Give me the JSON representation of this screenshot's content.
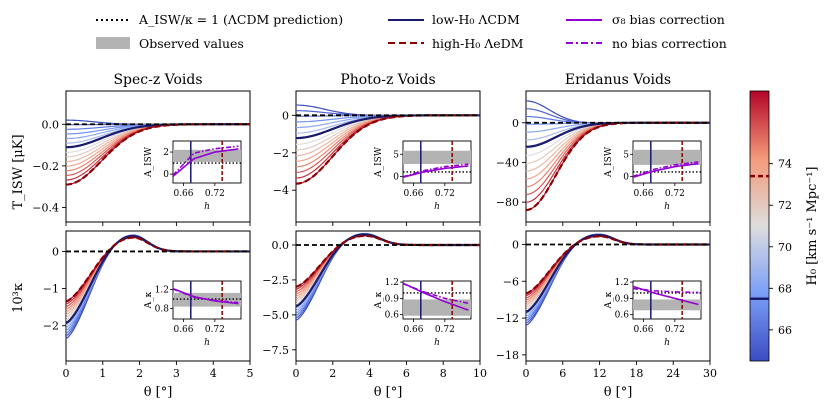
{
  "chart_data": {
    "type": "line",
    "legend": {
      "placement": "top",
      "entries": [
        {
          "key": "lcdm_pred",
          "label": "A_ISW/κ = 1 (ΛCDM prediction)",
          "style": "dotted",
          "color": "#000000"
        },
        {
          "key": "observed",
          "label": "Observed values",
          "style": "band",
          "color": "#b3b3b3"
        },
        {
          "key": "lowH0",
          "label": "low-H₀ ΛCDM",
          "style": "solid",
          "color": "#1a1a6e"
        },
        {
          "key": "highH0",
          "label": "high-H₀ ΛeDM",
          "style": "dashed",
          "color": "#8b0000"
        },
        {
          "key": "s8",
          "label": "σ₈ bias correction",
          "style": "solid",
          "color": "#9400d3"
        },
        {
          "key": "nobias",
          "label": "no bias correction",
          "style": "dashdot",
          "color": "#9400d3"
        }
      ]
    },
    "colorbar": {
      "label": "H₀ [km s⁻¹ Mpc⁻¹]",
      "ticks": [
        66,
        68,
        70,
        72,
        74
      ],
      "range": [
        64.5,
        77.5
      ],
      "marks": [
        67.5,
        73.4
      ],
      "colormap": "coolwarm"
    },
    "row_ylabels": [
      "T_ISW [μK]",
      "10³κ"
    ],
    "xlabel": "θ [°]",
    "inset_xlabel": "h",
    "inset_xticks": [
      "0.66",
      "0.72"
    ],
    "inset_xrange": [
      0.64,
      0.77
    ],
    "inset_vlines": [
      0.674,
      0.734
    ],
    "panels": [
      {
        "title": "Spec-z Voids",
        "xlim": [
          0,
          5
        ],
        "xticks": [
          0,
          1,
          2,
          3,
          4,
          5
        ],
        "isw": {
          "ylim": [
            -0.47,
            0.16
          ],
          "yticks": [
            "0.0",
            "−0.2",
            "−0.4"
          ],
          "ytick_values": [
            0,
            -0.2,
            -0.4
          ],
          "minA": -0.29,
          "maxA": 0.02,
          "x0": 0.0,
          "xs": 2.2
        },
        "kappa": {
          "ylim": [
            -2.95,
            0.55
          ],
          "yticks": [
            "0",
            "−1",
            "−2"
          ],
          "ytick_values": [
            0,
            -1,
            -2
          ],
          "minA": -1.35,
          "maxA": -2.35,
          "peak": 0.28,
          "zc": 1.35,
          "pk": 1.85,
          "xs": 3.0
        },
        "inset_isw": {
          "ylabel": "A_ISW",
          "yticks": [
            "0",
            "2"
          ],
          "ytick_values": [
            0,
            2
          ],
          "ylim": [
            -0.8,
            3.0
          ],
          "band": [
            1.1,
            2.2
          ],
          "s8": [
            -0.2,
            1.4,
            2.0,
            2.25
          ],
          "nobias": [
            -0.1,
            1.9,
            2.3,
            2.5
          ]
        },
        "inset_kappa": {
          "ylabel": "A_κ",
          "yticks": [
            "0.8",
            "1.2"
          ],
          "ytick_values": [
            0.8,
            1.2
          ],
          "ylim": [
            0.58,
            1.38
          ],
          "band": [
            0.84,
            1.13
          ],
          "s8": [
            1.22,
            1.05,
            0.96,
            0.91
          ],
          "nobias": [
            1.21,
            1.04,
            0.97,
            0.93
          ]
        }
      },
      {
        "title": "Photo-z Voids",
        "xlim": [
          0,
          10
        ],
        "xticks": [
          0,
          2,
          4,
          6,
          8,
          10
        ],
        "isw": {
          "ylim": [
            -5.7,
            1.3
          ],
          "yticks": [
            "0",
            "−2",
            "−4"
          ],
          "ytick_values": [
            0,
            -2,
            -4
          ],
          "minA": -3.65,
          "maxA": 0.55,
          "x0": 0.0,
          "xs": 4.5
        },
        "kappa": {
          "ylim": [
            -8.3,
            1.0
          ],
          "yticks": [
            "0.0",
            "−2.5",
            "−5.0",
            "−7.5"
          ],
          "ytick_values": [
            0,
            -2.5,
            -5,
            -7.5
          ],
          "minA": -3.0,
          "maxA": -5.4,
          "peak": 0.45,
          "zc": 2.7,
          "pk": 3.9,
          "xs": 6.0
        },
        "inset_isw": {
          "ylabel": "A_ISW",
          "yticks": [
            "0",
            "5"
          ],
          "ytick_values": [
            0,
            5
          ],
          "ylim": [
            -1.5,
            8.0
          ],
          "band": [
            2.8,
            5.8
          ],
          "s8": [
            -0.2,
            1.0,
            1.8,
            2.3
          ],
          "nobias": [
            -0.1,
            1.3,
            2.2,
            2.7
          ]
        },
        "inset_kappa": {
          "ylabel": "A_κ",
          "yticks": [
            "0.6",
            "0.9",
            "1.2"
          ],
          "ytick_values": [
            0.6,
            0.9,
            1.2
          ],
          "ylim": [
            0.52,
            1.22
          ],
          "band": [
            0.58,
            0.88
          ],
          "s8": [
            1.18,
            1.0,
            0.84,
            0.7
          ],
          "nobias": [
            1.17,
            1.02,
            0.9,
            0.82
          ]
        }
      },
      {
        "title": "Eridanus Voids",
        "xlim": [
          0,
          30
        ],
        "xticks": [
          0,
          6,
          12,
          18,
          24,
          30
        ],
        "isw": {
          "ylim": [
            -100,
            32
          ],
          "yticks": [
            "0",
            "−40",
            "−80"
          ],
          "ytick_values": [
            0,
            -40,
            -80
          ],
          "minA": -88,
          "maxA": 22,
          "x0": 0.0,
          "xs": 11.0
        },
        "kappa": {
          "ylim": [
            -19,
            2.2
          ],
          "yticks": [
            "0",
            "−6",
            "−12",
            "−18"
          ],
          "ytick_values": [
            0,
            -6,
            -12,
            -18
          ],
          "minA": -8.0,
          "maxA": -13.2,
          "peak": 0.8,
          "zc": 8.5,
          "pk": 12.5,
          "xs": 16.0
        },
        "inset_isw": {
          "ylabel": "A_ISW",
          "yticks": [
            "0",
            "5"
          ],
          "ytick_values": [
            0,
            5
          ],
          "ylim": [
            -1.5,
            8.0
          ],
          "band": [
            2.6,
            6.0
          ],
          "s8": [
            -0.2,
            1.2,
            2.2,
            2.8
          ],
          "nobias": [
            0.0,
            1.6,
            2.6,
            3.2
          ]
        },
        "inset_kappa": {
          "ylabel": "A_κ",
          "yticks": [
            "0.6",
            "0.9",
            "1.2"
          ],
          "ytick_values": [
            0.6,
            0.9,
            1.2
          ],
          "ylim": [
            0.52,
            1.22
          ],
          "band": [
            0.68,
            0.88
          ],
          "s8": [
            1.12,
            1.0,
            0.9,
            0.8
          ],
          "nobias": [
            1.08,
            1.04,
            1.02,
            1.01
          ]
        }
      }
    ]
  }
}
